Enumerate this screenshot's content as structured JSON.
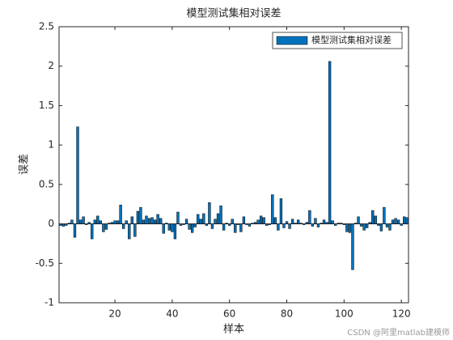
{
  "chart_data": {
    "type": "bar",
    "title": "模型测试集相对误差",
    "xlabel": "样本",
    "ylabel": "误差",
    "legend": {
      "label": "模型测试集相对误差",
      "position": "northeast"
    },
    "color": "#0072BD",
    "edgecolor": "#000000",
    "x": [
      1,
      2,
      3,
      4,
      5,
      6,
      7,
      8,
      9,
      10,
      11,
      12,
      13,
      14,
      15,
      16,
      17,
      18,
      19,
      20,
      21,
      22,
      23,
      24,
      25,
      26,
      27,
      28,
      29,
      30,
      31,
      32,
      33,
      34,
      35,
      36,
      37,
      38,
      39,
      40,
      41,
      42,
      43,
      44,
      45,
      46,
      47,
      48,
      49,
      50,
      51,
      52,
      53,
      54,
      55,
      56,
      57,
      58,
      59,
      60,
      61,
      62,
      63,
      64,
      65,
      66,
      67,
      68,
      69,
      70,
      71,
      72,
      73,
      74,
      75,
      76,
      77,
      78,
      79,
      80,
      81,
      82,
      83,
      84,
      85,
      86,
      87,
      88,
      89,
      90,
      91,
      92,
      93,
      94,
      95,
      96,
      97,
      98,
      99,
      100,
      101,
      102,
      103,
      104,
      105,
      106,
      107,
      108,
      109,
      110,
      111,
      112,
      113,
      114,
      115,
      116,
      117,
      118,
      119,
      120,
      121,
      122
    ],
    "values": [
      -0.02,
      -0.03,
      -0.02,
      0.01,
      0.05,
      -0.17,
      1.23,
      0.05,
      0.09,
      -0.01,
      0.02,
      -0.19,
      0.05,
      0.1,
      0.04,
      -0.1,
      -0.07,
      0.01,
      0.02,
      0.04,
      0.04,
      0.24,
      -0.06,
      0.04,
      -0.19,
      0.09,
      -0.16,
      0.16,
      0.21,
      0.05,
      0.1,
      0.07,
      0.08,
      0.05,
      0.12,
      0.07,
      -0.12,
      0.01,
      -0.08,
      -0.1,
      -0.19,
      0.15,
      -0.02,
      -0.01,
      0.06,
      -0.07,
      -0.11,
      -0.04,
      0.12,
      0.06,
      0.13,
      -0.02,
      0.27,
      -0.06,
      0.06,
      0.13,
      0.23,
      -0.08,
      0.01,
      -0.02,
      0.06,
      -0.11,
      -0.01,
      -0.1,
      0.09,
      -0.01,
      -0.03,
      0.01,
      0.02,
      0.05,
      0.1,
      0.08,
      -0.02,
      -0.01,
      0.37,
      0.08,
      -0.08,
      0.32,
      -0.05,
      0.03,
      -0.06,
      0.06,
      0.01,
      0.05,
      0.01,
      -0.01,
      0.02,
      0.17,
      -0.03,
      0.07,
      -0.04,
      0.01,
      0.05,
      0.02,
      2.06,
      0.04,
      -0.02,
      0.01,
      0.01,
      -0.01,
      -0.1,
      -0.11,
      -0.58,
      0.01,
      0.09,
      -0.03,
      -0.08,
      -0.05,
      0.02,
      0.17,
      0.1,
      -0.02,
      -0.09,
      0.21,
      -0.04,
      -0.08,
      0.05,
      0.07,
      0.05,
      -0.02,
      0.09,
      0.08
    ],
    "xlim": [
      0.5,
      122.5
    ],
    "xticks": [
      20,
      40,
      60,
      80,
      100,
      120
    ],
    "ylim": [
      -1,
      2.5
    ],
    "yticks": [
      -1,
      -0.5,
      0,
      0.5,
      1,
      1.5,
      2,
      2.5
    ],
    "grid": false
  },
  "watermark": "CSDN @阿里matlab建模师"
}
